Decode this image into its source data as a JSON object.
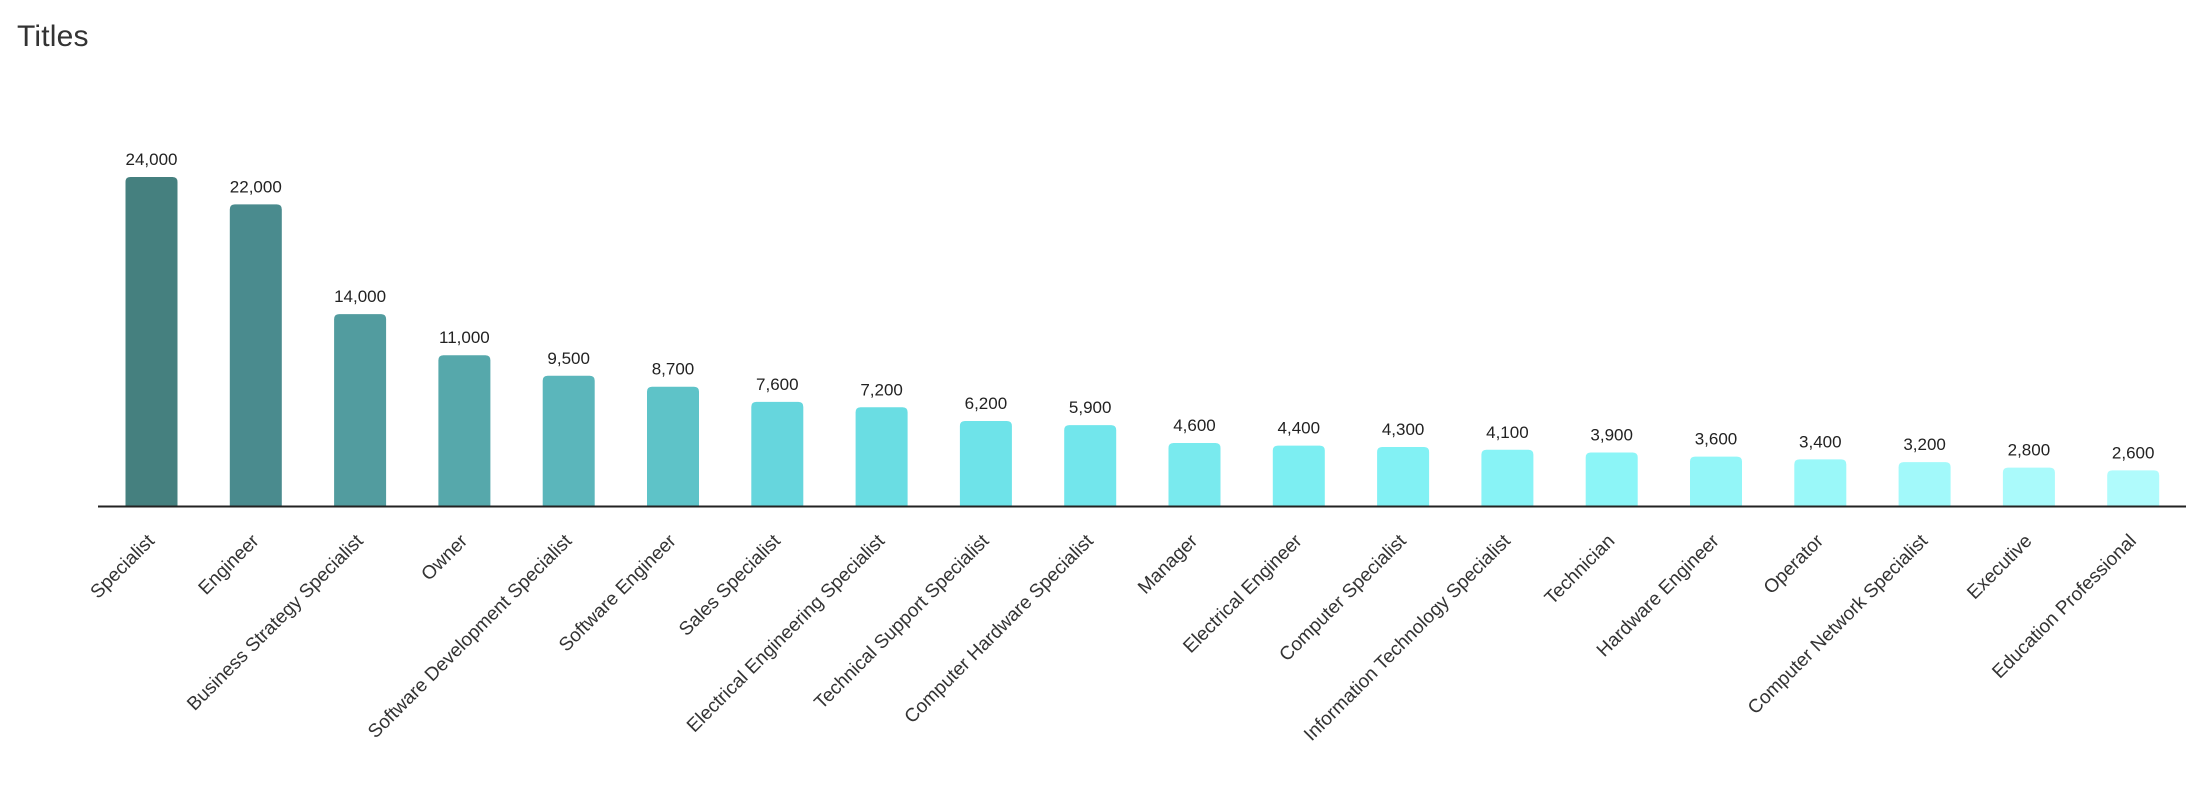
{
  "title": "Titles",
  "chart_data": {
    "type": "bar",
    "title": "Titles",
    "xlabel": "",
    "ylabel": "",
    "ylim": [
      0,
      24000
    ],
    "grid": false,
    "legend": "none",
    "categories": [
      "Specialist",
      "Engineer",
      "Business Strategy Specialist",
      "Owner",
      "Software Development Specialist",
      "Software Engineer",
      "Sales Specialist",
      "Electrical Engineering Specialist",
      "Technical Support Specialist",
      "Computer Hardware Specialist",
      "Manager",
      "Electrical Engineer",
      "Computer Specialist",
      "Information Technology Specialist",
      "Technician",
      "Hardware Engineer",
      "Operator",
      "Computer Network Specialist",
      "Executive",
      "Education Professional"
    ],
    "values": [
      24000,
      22000,
      14000,
      11000,
      9500,
      8700,
      7600,
      7200,
      6200,
      5900,
      4600,
      4400,
      4300,
      4100,
      3900,
      3600,
      3400,
      3200,
      2800,
      2600
    ],
    "data_labels": [
      "24,000",
      "22,000",
      "14,000",
      "11,000",
      "9,500",
      "8,700",
      "7,600",
      "7,200",
      "6,200",
      "5,900",
      "4,600",
      "4,400",
      "4,300",
      "4,100",
      "3,900",
      "3,600",
      "3,400",
      "3,200",
      "2,800",
      "2,600"
    ],
    "colors": [
      "#45807f",
      "#4a8b8e",
      "#529c9f",
      "#56a8ab",
      "#5bb6bb",
      "#5ec3c8",
      "#66d6dd",
      "#6adde3",
      "#6ee3e9",
      "#72e6ec",
      "#79eaee",
      "#7ceef2",
      "#82f1f4",
      "#88f3f6",
      "#8cf5f7",
      "#93f6f8",
      "#9af8f9",
      "#a2f9fa",
      "#aafafb",
      "#b0fbfc"
    ],
    "axis_color": "#222222"
  }
}
